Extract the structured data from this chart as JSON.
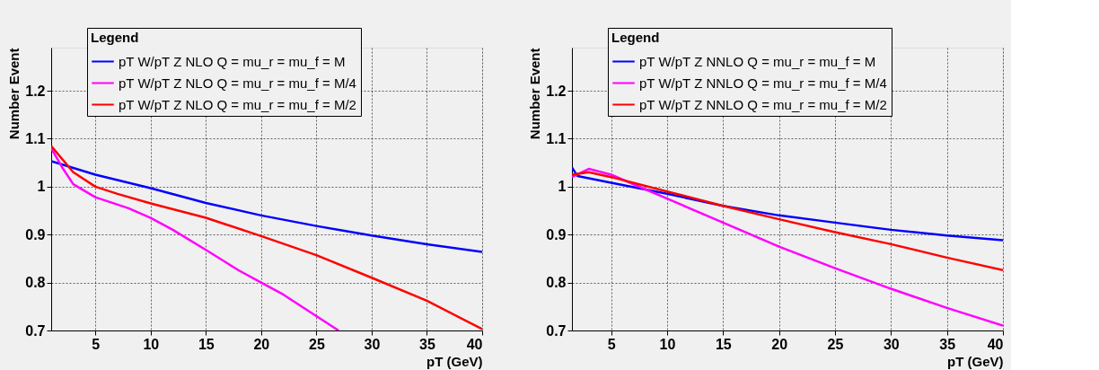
{
  "chart_data": [
    {
      "type": "line",
      "xlabel": "pT (GeV)",
      "ylabel": "Number Event",
      "legend_title": "Legend",
      "legend": "top",
      "grid": true,
      "marker": "none",
      "line_style": "solid",
      "xlim": [
        1,
        40
      ],
      "ylim": [
        0.7,
        1.29
      ],
      "xticks": [
        5,
        10,
        15,
        20,
        25,
        30,
        35,
        40
      ],
      "yticks": [
        0.7,
        0.8,
        0.9,
        1,
        1.1,
        1.2
      ],
      "series": [
        {
          "name": "pT W/pT Z NLO Q = mu_r = mu_f = M",
          "color": "#0000ff",
          "x": [
            1,
            5,
            10,
            15,
            20,
            25,
            30,
            35,
            40
          ],
          "values": [
            1.053,
            1.025,
            0.997,
            0.966,
            0.94,
            0.918,
            0.898,
            0.88,
            0.864
          ]
        },
        {
          "name": "pT W/pT Z NLO Q = mu_r = mu_f = M/4",
          "color": "#ff00ff",
          "x": [
            1,
            2,
            3,
            5,
            8,
            10,
            12,
            15,
            18,
            20,
            22,
            24,
            26,
            27
          ],
          "values": [
            1.08,
            1.04,
            1.005,
            0.978,
            0.955,
            0.935,
            0.91,
            0.868,
            0.825,
            0.8,
            0.775,
            0.745,
            0.715,
            0.7
          ]
        },
        {
          "name": "pT W/pT Z NLO Q = mu_r = mu_f = M/2",
          "color": "#ff0000",
          "x": [
            1,
            3,
            5,
            7,
            10,
            15,
            20,
            25,
            30,
            35,
            40
          ],
          "values": [
            1.085,
            1.03,
            1.0,
            0.985,
            0.965,
            0.935,
            0.897,
            0.857,
            0.81,
            0.762,
            0.703
          ]
        }
      ]
    },
    {
      "type": "line",
      "xlabel": "pT (GeV)",
      "ylabel": "Number Event",
      "legend_title": "Legend",
      "legend": "top",
      "grid": true,
      "marker": "none",
      "line_style": "solid",
      "xlim": [
        1.5,
        40
      ],
      "ylim": [
        0.7,
        1.29
      ],
      "xticks": [
        5,
        10,
        15,
        20,
        25,
        30,
        35,
        40
      ],
      "yticks": [
        0.7,
        0.8,
        0.9,
        1,
        1.1,
        1.2
      ],
      "series": [
        {
          "name": "pT W/pT Z NNLO Q = mu_r = mu_f = M",
          "color": "#0000ff",
          "x": [
            1.5,
            2,
            5,
            10,
            15,
            20,
            25,
            30,
            35,
            40
          ],
          "values": [
            1.04,
            1.022,
            1.008,
            0.985,
            0.96,
            0.94,
            0.925,
            0.91,
            0.898,
            0.888
          ]
        },
        {
          "name": "pT W/pT Z NNLO Q = mu_r = mu_f = M/4",
          "color": "#ff00ff",
          "x": [
            1.5,
            3,
            5,
            8,
            10,
            15,
            20,
            25,
            30,
            35,
            40
          ],
          "values": [
            1.02,
            1.037,
            1.025,
            0.995,
            0.975,
            0.925,
            0.875,
            0.83,
            0.787,
            0.747,
            0.71
          ]
        },
        {
          "name": "pT W/pT Z NNLO Q = mu_r = mu_f = M/2",
          "color": "#ff0000",
          "x": [
            1.5,
            3,
            5,
            10,
            15,
            20,
            25,
            30,
            35,
            40
          ],
          "values": [
            1.025,
            1.03,
            1.02,
            0.99,
            0.96,
            0.932,
            0.905,
            0.88,
            0.852,
            0.826
          ]
        }
      ]
    }
  ]
}
